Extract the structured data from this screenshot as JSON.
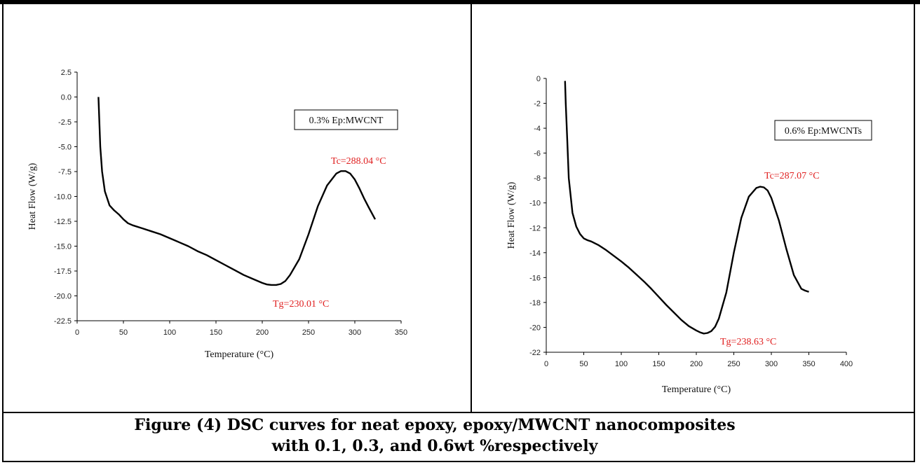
{
  "caption": {
    "line1": "Figure (4) DSC curves for neat epoxy, epoxy/MWCNT nanocomposites",
    "line2": "with 0.1, 0.3, and 0.6wt %respectively"
  },
  "colors": {
    "curve": "#000000",
    "annotation": "#e02020",
    "axis": "#000000"
  },
  "chart_data": [
    {
      "type": "line",
      "title": "",
      "legend": "0.3% Ep:MWCNT",
      "legend_position": "top-right",
      "xlabel": "Temperature (°C)",
      "ylabel": "Heat Flow (W/g)",
      "xlim": [
        0,
        350
      ],
      "ylim": [
        -22.5,
        2.5
      ],
      "xticks": [
        0,
        50,
        100,
        150,
        200,
        250,
        300,
        350
      ],
      "yticks": [
        2.5,
        0.0,
        -2.5,
        -5.0,
        -7.5,
        -10.0,
        -12.5,
        -15.0,
        -17.5,
        -20.0,
        -22.5
      ],
      "xtick_labels": [
        "0",
        "50",
        "100",
        "150",
        "200",
        "250",
        "300",
        "350"
      ],
      "ytick_labels": [
        "2.5",
        "0.0",
        "-2.5",
        "-5.0",
        "-7.5",
        "-10.0",
        "-12.5",
        "-15.0",
        "-17.5",
        "-20.0",
        "-22.5"
      ],
      "grid": false,
      "series": [
        {
          "x": [
            23,
            24,
            25,
            27,
            30,
            35,
            40,
            45,
            50,
            55,
            60,
            70,
            80,
            90,
            100,
            110,
            120,
            130,
            140,
            150,
            160,
            170,
            180,
            190,
            200,
            205,
            210,
            215,
            220,
            225,
            230,
            240,
            250,
            260,
            270,
            280,
            285,
            290,
            295,
            300,
            305,
            310,
            315,
            322
          ],
          "y": [
            0.0,
            -2.5,
            -5.0,
            -7.5,
            -9.5,
            -10.9,
            -11.4,
            -11.8,
            -12.3,
            -12.7,
            -12.9,
            -13.2,
            -13.5,
            -13.8,
            -14.2,
            -14.6,
            -15.0,
            -15.5,
            -15.9,
            -16.4,
            -16.9,
            -17.4,
            -17.9,
            -18.3,
            -18.7,
            -18.85,
            -18.9,
            -18.9,
            -18.8,
            -18.5,
            -17.9,
            -16.3,
            -13.8,
            -11.0,
            -8.9,
            -7.7,
            -7.45,
            -7.45,
            -7.7,
            -8.3,
            -9.2,
            -10.2,
            -11.1,
            -12.3
          ]
        }
      ],
      "annotations": [
        {
          "text": "Tc=288.04 °C",
          "x": 288.04,
          "y": -7.4
        },
        {
          "text": "Tg=230.01 °C",
          "x": 230.01,
          "y": -19.0
        }
      ]
    },
    {
      "type": "line",
      "title": "",
      "legend": "0.6% Ep:MWCNTs",
      "legend_position": "top-right",
      "xlabel": "Temperature (°C)",
      "ylabel": "Heat Flow (W/g)",
      "xlim": [
        0,
        400
      ],
      "ylim": [
        -22,
        0
      ],
      "xticks": [
        0,
        50,
        100,
        150,
        200,
        250,
        300,
        350,
        400
      ],
      "yticks": [
        0,
        -2,
        -4,
        -6,
        -8,
        -10,
        -12,
        -14,
        -16,
        -18,
        -20,
        -22
      ],
      "xtick_labels": [
        "0",
        "50",
        "100",
        "150",
        "200",
        "250",
        "300",
        "350",
        "400"
      ],
      "ytick_labels": [
        "0",
        "-2",
        "-4",
        "-6",
        "-8",
        "-10",
        "-12",
        "-14",
        "-16",
        "-18",
        "-20",
        "-22"
      ],
      "grid": false,
      "series": [
        {
          "x": [
            25,
            26,
            28,
            30,
            35,
            40,
            45,
            50,
            55,
            60,
            70,
            80,
            90,
            100,
            110,
            120,
            130,
            140,
            150,
            160,
            170,
            180,
            190,
            200,
            205,
            210,
            215,
            220,
            225,
            230,
            240,
            250,
            260,
            270,
            280,
            285,
            290,
            295,
            300,
            310,
            320,
            330,
            340,
            345,
            350
          ],
          "y": [
            -0.2,
            -2.0,
            -5.0,
            -8.0,
            -10.8,
            -11.9,
            -12.5,
            -12.85,
            -13.0,
            -13.1,
            -13.4,
            -13.8,
            -14.25,
            -14.7,
            -15.2,
            -15.75,
            -16.3,
            -16.9,
            -17.55,
            -18.2,
            -18.8,
            -19.4,
            -19.9,
            -20.25,
            -20.4,
            -20.5,
            -20.45,
            -20.3,
            -19.95,
            -19.3,
            -17.2,
            -14.0,
            -11.2,
            -9.5,
            -8.8,
            -8.7,
            -8.75,
            -9.0,
            -9.6,
            -11.4,
            -13.7,
            -15.8,
            -16.9,
            -17.05,
            -17.15
          ]
        }
      ],
      "annotations": [
        {
          "text": "Tc=287.07 °C",
          "x": 287.07,
          "y": -8.7
        },
        {
          "text": "Tg=238.63 °C",
          "x": 238.63,
          "y": -20.5
        }
      ]
    }
  ]
}
